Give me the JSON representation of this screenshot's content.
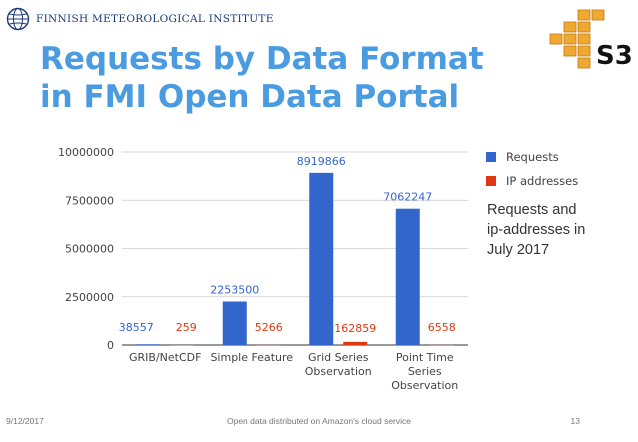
{
  "header": {
    "org_name": "FINNISH METEOROLOGICAL INSTITUTE",
    "logo_icon": "fmi-globe-icon"
  },
  "title": {
    "line1": "Requests by Data Format",
    "line2": "in FMI Open Data Portal"
  },
  "s3_logo": {
    "text": "S3",
    "icon": "aws-s3-cubes-icon",
    "color": "#f0a830"
  },
  "annotation": {
    "line1": "Requests and",
    "line2": "ip-addresses in",
    "line3": "July 2017"
  },
  "footer": {
    "date": "9/12/2017",
    "text": "Open data distributed on Amazon's cloud service",
    "page": "13"
  },
  "chart_data": {
    "type": "bar",
    "categories": [
      [
        "GRIB/NetCDF"
      ],
      [
        "Simple Feature"
      ],
      [
        "Grid Series",
        "Observation"
      ],
      [
        "Point Time",
        "Series",
        "Observation"
      ]
    ],
    "series": [
      {
        "name": "Requests",
        "color": "#3366cc",
        "values": [
          38557,
          2253500,
          8919866,
          7062247
        ]
      },
      {
        "name": "IP addresses",
        "color": "#dc3912",
        "values": [
          259,
          5266,
          162859,
          6558
        ]
      }
    ],
    "data_labels": {
      "Requests": [
        "38557",
        "2253500",
        "8919866",
        "7062247"
      ],
      "IP addresses": [
        "259",
        "5266",
        "162859",
        "6558"
      ]
    },
    "y_ticks": [
      0,
      2500000,
      5000000,
      7500000,
      10000000
    ],
    "y_tick_labels": [
      "0",
      "2500000",
      "5000000",
      "7500000",
      "10000000"
    ],
    "ylim": [
      0,
      10000000
    ],
    "grid": true,
    "legend_position": "right"
  }
}
